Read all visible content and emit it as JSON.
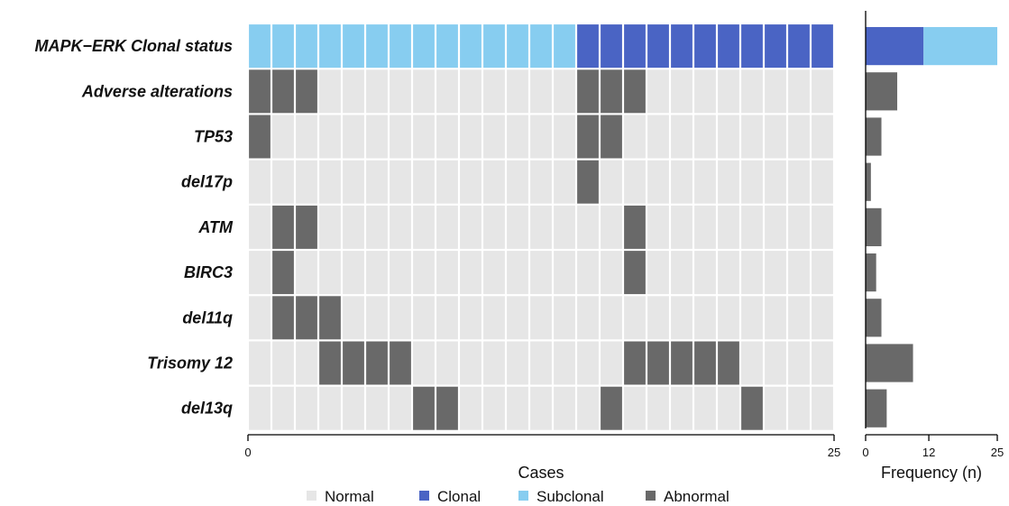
{
  "chart_data": [
    {
      "type": "heatmap",
      "xlabel": "Cases",
      "x_ticks": [
        0,
        25
      ],
      "n_cases": 25,
      "rows": [
        {
          "label": "MAPK−ERK Clonal status",
          "type": "status",
          "values": [
            "S",
            "S",
            "S",
            "S",
            "S",
            "S",
            "S",
            "S",
            "S",
            "S",
            "S",
            "S",
            "S",
            "S",
            "C",
            "C",
            "C",
            "C",
            "C",
            "C",
            "C",
            "C",
            "C",
            "C",
            "C"
          ]
        },
        {
          "label": "Adverse alterations",
          "abnormal_cases": [
            0,
            1,
            2,
            14,
            15,
            16
          ]
        },
        {
          "label": "TP53",
          "abnormal_cases": [
            0,
            14,
            15
          ]
        },
        {
          "label": "del17p",
          "abnormal_cases": [
            14
          ]
        },
        {
          "label": "ATM",
          "abnormal_cases": [
            1,
            2,
            16
          ]
        },
        {
          "label": "BIRC3",
          "abnormal_cases": [
            1,
            16
          ]
        },
        {
          "label": "del11q",
          "abnormal_cases": [
            1,
            2,
            3
          ]
        },
        {
          "label": "Trisomy 12",
          "abnormal_cases": [
            3,
            4,
            5,
            6,
            16,
            17,
            18,
            19,
            20
          ]
        },
        {
          "label": "del13q",
          "abnormal_cases": [
            7,
            8,
            15,
            21
          ]
        }
      ],
      "legend": [
        {
          "key": "N",
          "label": "Normal",
          "color": "#e6e6e6"
        },
        {
          "key": "C",
          "label": "Clonal",
          "color": "#4a64c4"
        },
        {
          "key": "S",
          "label": "Subclonal",
          "color": "#87cdf0"
        },
        {
          "key": "A",
          "label": "Abnormal",
          "color": "#696969"
        }
      ],
      "legend_position": "bottom"
    },
    {
      "type": "bar",
      "orientation": "horizontal",
      "xlabel": "Frequency (n)",
      "x_ticks": [
        0,
        12,
        25
      ],
      "xlim": [
        0,
        25
      ],
      "categories": [
        "MAPK−ERK Clonal status",
        "Adverse alterations",
        "TP53",
        "del17p",
        "ATM",
        "BIRC3",
        "del11q",
        "Trisomy 12",
        "del13q"
      ],
      "stacked_first_row": {
        "clonal": 11,
        "subclonal": 14
      },
      "values": [
        25,
        6,
        3,
        1,
        3,
        2,
        3,
        9,
        4
      ]
    }
  ]
}
